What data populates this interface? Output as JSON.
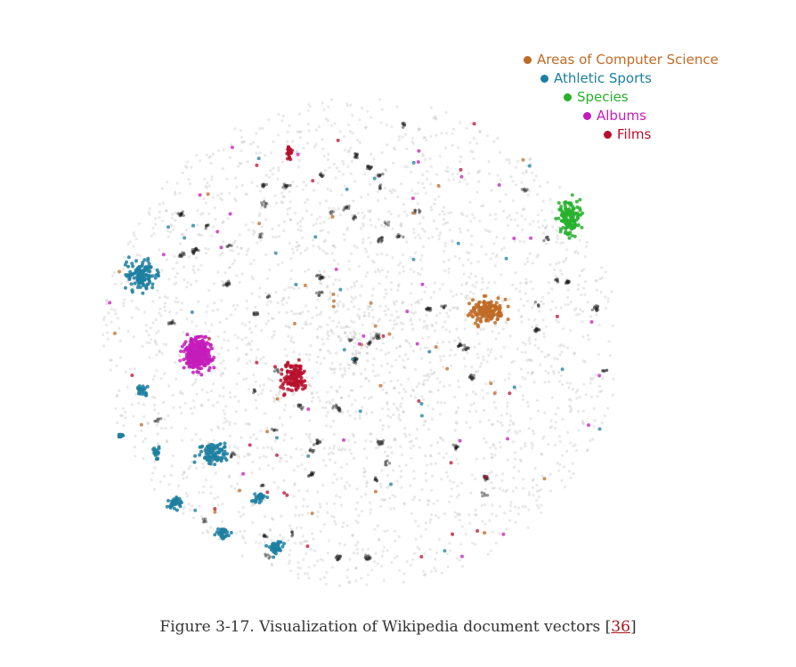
{
  "caption": {
    "text": "Figure 3-17. Visualization of Wikipedia document vectors [",
    "ref": "36",
    "close": "]"
  },
  "chart_data": {
    "type": "scatter",
    "background_color": "#999999",
    "legend_position": "top-right",
    "series": [
      {
        "name": "Areas of Computer Science",
        "color": "#c06b26"
      },
      {
        "name": "Athletic Sports",
        "color": "#1d7fa0"
      },
      {
        "name": "Species",
        "color": "#27b12b"
      },
      {
        "name": "Albums",
        "color": "#c41cbb"
      },
      {
        "name": "Films",
        "color": "#b8102e"
      }
    ]
  }
}
